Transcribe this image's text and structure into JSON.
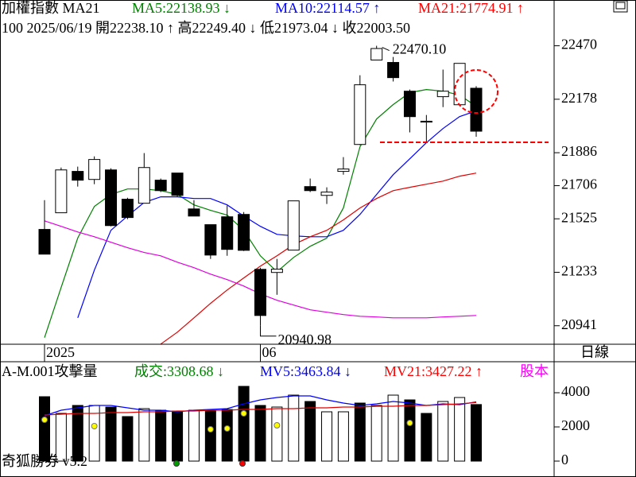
{
  "chart_data": [
    {
      "type": "candlestick",
      "header": [
        {
          "text": "加權指數 MA21",
          "color": "#000000"
        },
        {
          "text": "MA5:22138.93 ↓",
          "color": "#008000"
        },
        {
          "text": "MA10:22114.57 ↑",
          "color": "#0000ff"
        },
        {
          "text": "MA21:21774.91 ↑",
          "color": "#ff0000"
        }
      ],
      "subtitle": "100 2025/06/19 開22238.10 ↑ 高22249.40 ↓ 低21973.04 ↓ 收22003.50",
      "period": "日線",
      "categories": [
        "2025",
        null,
        null,
        null,
        null,
        null,
        null,
        null,
        null,
        null,
        null,
        null,
        null,
        "06",
        null,
        null,
        null,
        null,
        null,
        null,
        null,
        null,
        null,
        null,
        null,
        null,
        null
      ],
      "open": [
        21467,
        21558,
        21784,
        21740,
        21792,
        21632,
        21610,
        21736,
        21775,
        21579,
        21493,
        21536,
        21549,
        21249,
        21232,
        21354,
        21701,
        21653,
        21784,
        21931,
        22392,
        22379,
        22222,
        22053,
        22192,
        22148,
        22238.1
      ],
      "high": [
        21627,
        21805,
        21810,
        21866,
        21801,
        21640,
        21884,
        21745,
        21775,
        21627,
        21493,
        21597,
        21562,
        21258,
        21306,
        21623,
        21745,
        21697,
        21862,
        22309,
        22470.1,
        22409,
        22231,
        22092,
        22340,
        22374,
        22249.4
      ],
      "low": [
        21332,
        21558,
        21701,
        21714,
        21484,
        21523,
        21610,
        21671,
        21645,
        21540,
        21306,
        21323,
        21349,
        20940.98,
        21110,
        21354,
        21671,
        21606,
        21766,
        21927,
        22392,
        22275,
        21997,
        21940,
        22135,
        22148,
        21973.04
      ],
      "close": [
        21332,
        21792,
        21736,
        21849,
        21488,
        21532,
        21805,
        21679,
        21653,
        21540,
        21327,
        21358,
        21353,
        20997,
        21250,
        21623,
        21679,
        21671,
        21797,
        22257,
        22455,
        22296,
        22083,
        22058,
        22222,
        22374,
        22003.5
      ],
      "up_color": "#ffffff",
      "down_color": "#000000",
      "series": [
        {
          "color": "#008000",
          "values": [
            20876,
            21150,
            21420,
            21593,
            21658,
            21688,
            21688,
            21679,
            21658,
            21601,
            21571,
            21545,
            21462,
            21323,
            21236,
            21314,
            21375,
            21419,
            21584,
            21918,
            22070,
            22149,
            22214,
            22231,
            22222,
            22201,
            22138.93
          ]
        },
        {
          "color": "#0000ff",
          "values": [
            null,
            null,
            20984,
            21245,
            21462,
            21540,
            21614,
            21645,
            21645,
            21636,
            21636,
            21601,
            21540,
            21484,
            21440,
            21432,
            21427,
            21427,
            21462,
            21549,
            21658,
            21766,
            21853,
            21940,
            22018,
            22083,
            22114.57
          ]
        },
        {
          "color": "#e00000",
          "values": [
            null,
            null,
            null,
            null,
            null,
            null,
            null,
            20841,
            20906,
            20984,
            21063,
            21136,
            21202,
            21267,
            21323,
            21384,
            21427,
            21462,
            21519,
            21584,
            21636,
            21679,
            21697,
            21714,
            21731,
            21758,
            21774.91
          ]
        },
        {
          "color": "#e000e0",
          "values": [
            21514,
            21484,
            21453,
            21427,
            21397,
            21367,
            21341,
            21323,
            21288,
            21258,
            21223,
            21193,
            21158,
            21115,
            21080,
            21054,
            21028,
            21015,
            21002,
            20993,
            20989,
            20984,
            20984,
            20984,
            20989,
            20993,
            20997
          ]
        }
      ],
      "annotations": [
        "22470.10",
        "20940.98"
      ],
      "ylim": [
        20840,
        22720
      ],
      "yticks": [
        22470,
        22178,
        21886,
        21706,
        21525,
        21233,
        20941
      ]
    },
    {
      "type": "volume",
      "header": [
        {
          "text": "A-M.001攻擊量",
          "color": "#000000"
        },
        {
          "text": "成交:3308.68 ↓",
          "color": "#008000"
        },
        {
          "text": "MV5:3463.84 ↓",
          "color": "#0000ff"
        },
        {
          "text": "MV21:3427.22 ↑",
          "color": "#ff0000"
        },
        {
          "text": "股本",
          "color": "#ff00ff"
        }
      ],
      "values": [
        3767,
        2791,
        3256,
        3256,
        3163,
        2605,
        3070,
        2977,
        2930,
        2977,
        2930,
        3023,
        4372,
        3256,
        3163,
        3860,
        3488,
        2884,
        2884,
        3395,
        3256,
        3860,
        3581,
        2791,
        3488,
        3721,
        3308.68
      ],
      "bar_colors": [
        "#000000",
        "#ffffff",
        "#000000",
        "#ffffff",
        "#000000",
        "#000000",
        "#ffffff",
        "#000000",
        "#000000",
        "#ffffff",
        "#000000",
        "#000000",
        "#000000",
        "#000000",
        "#ffffff",
        "#ffffff",
        "#000000",
        "#ffffff",
        "#ffffff",
        "#000000",
        "#ffffff",
        "#ffffff",
        "#000000",
        "#000000",
        "#ffffff",
        "#ffffff",
        "#000000"
      ],
      "series": [
        {
          "color": "#0000ff",
          "values": [
            2651,
            2977,
            3116,
            3256,
            3256,
            3116,
            2977,
            2977,
            2884,
            2977,
            3023,
            3070,
            3349,
            3581,
            3721,
            3814,
            3814,
            3581,
            3395,
            3256,
            3349,
            3488,
            3395,
            3256,
            3349,
            3302,
            3463.84
          ]
        },
        {
          "color": "#e00000",
          "values": [
            2698,
            2744,
            2791,
            2791,
            2837,
            2837,
            2884,
            2884,
            2930,
            2930,
            2977,
            2977,
            3023,
            3023,
            3070,
            3070,
            3116,
            3116,
            3163,
            3163,
            3209,
            3209,
            3256,
            3256,
            3302,
            3349,
            3427.22
          ]
        },
        {
          "color": "#ffff00",
          "marker": "dot",
          "values": [
            2419,
            null,
            null,
            2047,
            null,
            null,
            null,
            null,
            null,
            null,
            1860,
            1907,
            2791,
            null,
            2093,
            null,
            null,
            null,
            null,
            null,
            null,
            null,
            2233,
            null,
            null,
            null,
            null
          ]
        }
      ],
      "ylim": [
        -930,
        5814
      ],
      "yticks": [
        4000,
        2000,
        0
      ]
    }
  ],
  "footer": "奇狐勝券 v5.2"
}
